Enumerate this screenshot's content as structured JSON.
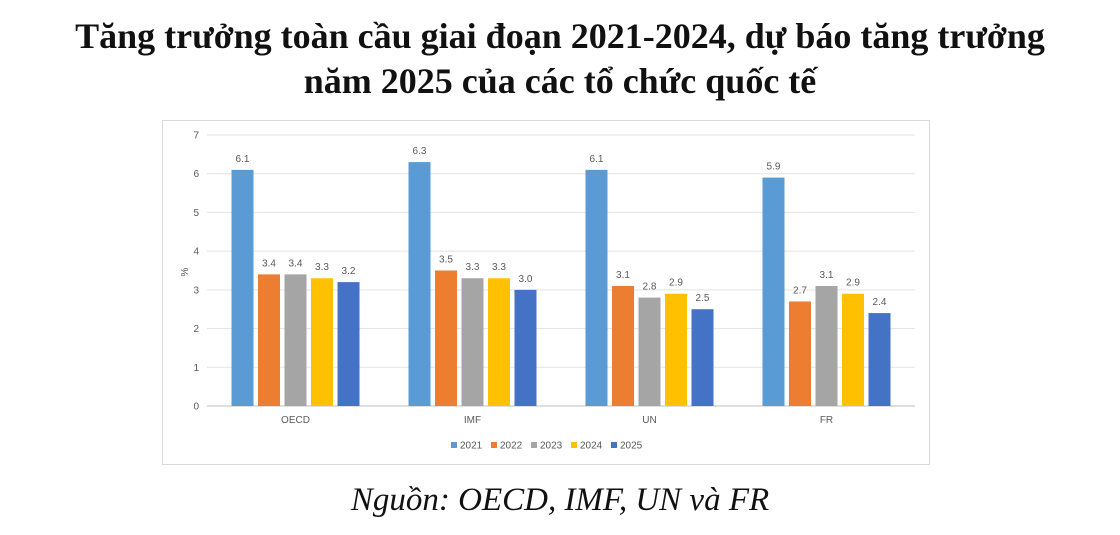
{
  "title": {
    "line1": "Tăng trưởng toàn cầu giai đoạn 2021-2024, dự báo tăng trưởng",
    "line2": "năm 2025 của các tổ chức quốc tế"
  },
  "source": "Nguồn: OECD, IMF, UN và FR",
  "chart_data": {
    "type": "bar",
    "title": "Tăng trưởng toàn cầu giai đoạn 2021-2024, dự báo tăng trưởng năm 2025 của các tổ chức quốc tế",
    "xlabel": "",
    "ylabel": "%",
    "ylim": [
      0,
      7
    ],
    "yticks": [
      "0",
      "1",
      "2",
      "3",
      "4",
      "5",
      "6",
      "7"
    ],
    "grid": true,
    "legend_position": "bottom",
    "categories": [
      "OECD",
      "IMF",
      "UN",
      "FR"
    ],
    "series": [
      {
        "name": "2021",
        "color": "#5B9BD5",
        "values": [
          6.1,
          6.3,
          6.1,
          5.9
        ],
        "labels": [
          "6.1",
          "6.3",
          "6.1",
          "5.9"
        ]
      },
      {
        "name": "2022",
        "color": "#ED7D31",
        "values": [
          3.4,
          3.5,
          3.1,
          2.7
        ],
        "labels": [
          "3.4",
          "3.5",
          "3.1",
          "2.7"
        ]
      },
      {
        "name": "2023",
        "color": "#A5A5A5",
        "values": [
          3.4,
          3.3,
          2.8,
          3.1
        ],
        "labels": [
          "3.4",
          "3.3",
          "2.8",
          "3.1"
        ]
      },
      {
        "name": "2024",
        "color": "#FFC000",
        "values": [
          3.3,
          3.3,
          2.9,
          2.9
        ],
        "labels": [
          "3.3",
          "3.3",
          "2.9",
          "2.9"
        ]
      },
      {
        "name": "2025",
        "color": "#4472C4",
        "values": [
          3.2,
          3.0,
          2.5,
          2.4
        ],
        "labels": [
          "3.2",
          "3.0",
          "2.5",
          "2.4"
        ]
      }
    ]
  }
}
